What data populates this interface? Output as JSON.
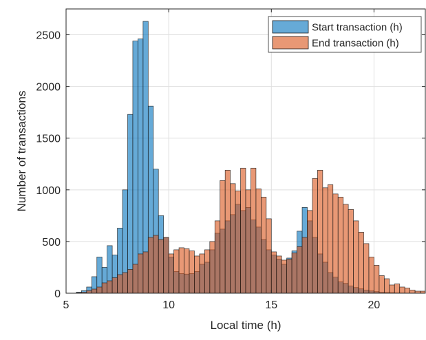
{
  "chart_data": {
    "type": "bar",
    "subtype": "overlapping-histogram",
    "title": "",
    "xlabel": "Local time (h)",
    "ylabel": "Number of transactions",
    "xlim": [
      5,
      22.5
    ],
    "ylim": [
      0,
      2750
    ],
    "bin_width": 0.25,
    "x_ticks": [
      5,
      10,
      15,
      20
    ],
    "y_ticks": [
      0,
      500,
      1000,
      1500,
      2000,
      2500
    ],
    "grid": true,
    "legend_position": "top-right",
    "series": [
      {
        "name": "Start transaction (h)",
        "color": "#0072BD",
        "bin_start": 5.5,
        "values": [
          10,
          25,
          60,
          160,
          350,
          250,
          460,
          370,
          630,
          1000,
          1730,
          2440,
          2460,
          2630,
          1810,
          1200,
          750,
          540,
          350,
          210,
          190,
          185,
          190,
          210,
          280,
          300,
          420,
          580,
          620,
          700,
          760,
          860,
          800,
          830,
          710,
          640,
          520,
          420,
          370,
          330,
          280,
          340,
          410,
          600,
          830,
          700,
          540,
          380,
          300,
          200,
          155,
          110,
          95,
          70,
          55,
          42,
          30,
          22,
          15,
          10,
          7,
          5,
          3,
          2,
          1,
          1,
          0,
          0
        ]
      },
      {
        "name": "End transaction (h)",
        "color": "#D95319",
        "bin_start": 5.5,
        "values": [
          5,
          10,
          25,
          40,
          60,
          100,
          120,
          150,
          180,
          200,
          230,
          280,
          380,
          400,
          540,
          560,
          520,
          540,
          380,
          420,
          440,
          430,
          410,
          360,
          380,
          420,
          500,
          700,
          1090,
          1190,
          1060,
          990,
          1210,
          1000,
          1210,
          1010,
          930,
          720,
          400,
          360,
          320,
          330,
          390,
          450,
          540,
          800,
          1110,
          1190,
          1020,
          1050,
          960,
          930,
          860,
          810,
          700,
          590,
          480,
          350,
          270,
          170,
          140,
          80,
          90,
          60,
          50,
          30,
          20,
          20
        ]
      }
    ]
  }
}
